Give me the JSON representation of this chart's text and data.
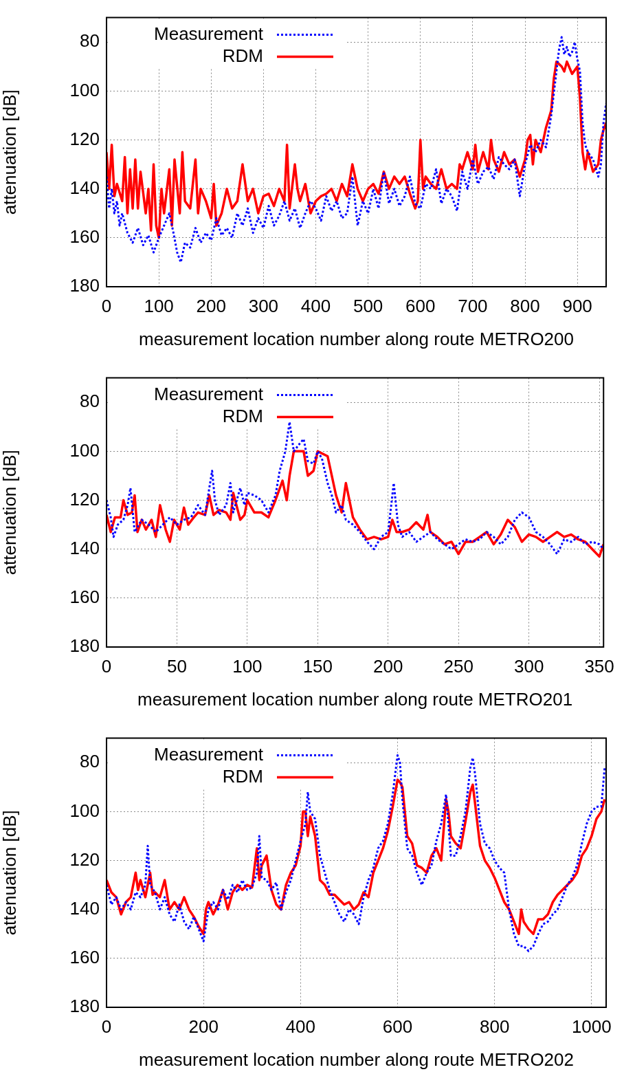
{
  "chart_data": [
    {
      "type": "line",
      "xlabel": "measurement location number along route METRO200",
      "ylabel": "attenuation [dB]",
      "xlim": [
        0,
        955
      ],
      "ylim": [
        180,
        70
      ],
      "xticks": [
        0,
        100,
        200,
        300,
        400,
        500,
        600,
        700,
        800,
        900
      ],
      "yticks": [
        80,
        100,
        120,
        140,
        160,
        180
      ],
      "grid": true,
      "legend": "top left",
      "series": [
        {
          "name": "Measurement",
          "color": "#0000ff",
          "line_style": "dotted",
          "x": [
            0,
            5,
            10,
            15,
            20,
            25,
            30,
            40,
            50,
            60,
            70,
            80,
            90,
            100,
            110,
            120,
            128,
            135,
            142,
            150,
            160,
            170,
            180,
            190,
            200,
            210,
            220,
            230,
            240,
            250,
            260,
            270,
            280,
            290,
            300,
            310,
            320,
            330,
            340,
            350,
            360,
            370,
            380,
            390,
            400,
            410,
            420,
            430,
            440,
            450,
            460,
            470,
            480,
            490,
            500,
            510,
            520,
            530,
            540,
            550,
            560,
            570,
            580,
            590,
            600,
            610,
            620,
            630,
            640,
            650,
            660,
            670,
            680,
            690,
            700,
            710,
            720,
            730,
            740,
            750,
            760,
            770,
            780,
            790,
            800,
            810,
            820,
            830,
            840,
            850,
            860,
            865,
            870,
            875,
            880,
            885,
            890,
            895,
            900,
            905,
            910,
            915,
            920,
            930,
            940,
            945,
            950,
            955
          ],
          "values": [
            135,
            148,
            140,
            150,
            145,
            155,
            150,
            158,
            162,
            156,
            163,
            159,
            166,
            160,
            155,
            150,
            158,
            166,
            170,
            162,
            164,
            156,
            162,
            158,
            161,
            152,
            159,
            156,
            160,
            150,
            155,
            148,
            158,
            152,
            156,
            147,
            155,
            151,
            145,
            153,
            148,
            156,
            150,
            145,
            148,
            153,
            143,
            149,
            145,
            152,
            150,
            135,
            155,
            145,
            150,
            140,
            148,
            133,
            146,
            140,
            147,
            143,
            135,
            146,
            148,
            138,
            140,
            132,
            146,
            140,
            143,
            149,
            133,
            140,
            128,
            138,
            133,
            131,
            136,
            127,
            130,
            132,
            128,
            143,
            130,
            122,
            125,
            120,
            123,
            110,
            92,
            83,
            78,
            85,
            82,
            86,
            84,
            80,
            87,
            92,
            113,
            122,
            125,
            128,
            135,
            130,
            113,
            105
          ]
        },
        {
          "name": "RDM",
          "color": "#ff0000",
          "line_style": "solid",
          "x": [
            0,
            5,
            10,
            15,
            20,
            30,
            35,
            40,
            45,
            50,
            55,
            60,
            65,
            75,
            80,
            85,
            90,
            95,
            100,
            105,
            110,
            120,
            125,
            130,
            140,
            145,
            150,
            160,
            170,
            175,
            180,
            190,
            200,
            205,
            210,
            220,
            230,
            240,
            250,
            260,
            270,
            280,
            290,
            300,
            310,
            320,
            330,
            340,
            345,
            350,
            360,
            365,
            370,
            380,
            390,
            400,
            410,
            420,
            430,
            440,
            450,
            460,
            470,
            480,
            490,
            500,
            510,
            520,
            530,
            540,
            550,
            560,
            570,
            580,
            590,
            595,
            600,
            605,
            610,
            620,
            630,
            640,
            650,
            660,
            670,
            675,
            680,
            690,
            700,
            705,
            710,
            720,
            730,
            735,
            740,
            750,
            760,
            770,
            780,
            790,
            800,
            805,
            810,
            815,
            820,
            830,
            840,
            850,
            855,
            860,
            870,
            875,
            880,
            890,
            900,
            905,
            910,
            915,
            920,
            930,
            940,
            945,
            950,
            955
          ],
          "values": [
            125,
            140,
            122,
            143,
            138,
            145,
            127,
            150,
            132,
            148,
            128,
            148,
            133,
            150,
            140,
            157,
            130,
            155,
            160,
            140,
            150,
            132,
            155,
            128,
            150,
            125,
            145,
            148,
            128,
            150,
            140,
            145,
            152,
            138,
            155,
            150,
            140,
            148,
            145,
            130,
            145,
            140,
            150,
            143,
            142,
            147,
            140,
            145,
            122,
            148,
            130,
            140,
            145,
            138,
            150,
            145,
            143,
            142,
            140,
            145,
            138,
            143,
            130,
            140,
            145,
            140,
            138,
            142,
            133,
            140,
            135,
            138,
            135,
            142,
            148,
            145,
            120,
            140,
            135,
            138,
            140,
            132,
            140,
            138,
            140,
            130,
            132,
            125,
            132,
            122,
            133,
            125,
            132,
            120,
            128,
            133,
            125,
            130,
            128,
            135,
            128,
            120,
            118,
            130,
            120,
            125,
            115,
            108,
            95,
            88,
            90,
            92,
            88,
            93,
            90,
            103,
            125,
            132,
            125,
            133,
            130,
            120,
            116,
            113
          ]
        }
      ]
    },
    {
      "type": "line",
      "xlabel": "measurement location number along route METRO201",
      "ylabel": "attenuation [dB]",
      "xlim": [
        0,
        353
      ],
      "ylim": [
        180,
        70
      ],
      "xticks": [
        0,
        50,
        100,
        150,
        200,
        250,
        300,
        350
      ],
      "yticks": [
        80,
        100,
        120,
        140,
        160,
        180
      ],
      "grid": true,
      "legend": "top left",
      "series": [
        {
          "name": "Measurement",
          "color": "#0000ff",
          "line_style": "dotted",
          "x": [
            0,
            3,
            5,
            8,
            12,
            15,
            17,
            20,
            25,
            30,
            35,
            40,
            45,
            50,
            55,
            60,
            65,
            70,
            73,
            75,
            77,
            80,
            85,
            88,
            90,
            95,
            98,
            100,
            105,
            110,
            115,
            120,
            123,
            127,
            130,
            133,
            137,
            140,
            143,
            147,
            150,
            153,
            157,
            160,
            163,
            167,
            170,
            175,
            180,
            185,
            190,
            195,
            200,
            202,
            204,
            207,
            210,
            215,
            220,
            225,
            230,
            235,
            240,
            245,
            250,
            255,
            260,
            265,
            270,
            275,
            280,
            285,
            290,
            295,
            300,
            305,
            310,
            315,
            320,
            325,
            330,
            335,
            340,
            345,
            350,
            353
          ],
          "values": [
            120,
            127,
            135,
            130,
            128,
            122,
            115,
            133,
            128,
            130,
            133,
            130,
            127,
            130,
            128,
            127,
            122,
            126,
            115,
            108,
            120,
            126,
            122,
            113,
            125,
            115,
            122,
            117,
            118,
            120,
            125,
            118,
            108,
            100,
            88,
            100,
            97,
            95,
            104,
            105,
            100,
            103,
            113,
            118,
            125,
            122,
            128,
            130,
            133,
            137,
            140,
            135,
            133,
            123,
            113,
            130,
            135,
            133,
            137,
            135,
            133,
            136,
            138,
            140,
            138,
            136,
            137,
            136,
            133,
            135,
            138,
            135,
            128,
            125,
            127,
            133,
            135,
            138,
            142,
            136,
            137,
            135,
            138,
            137,
            138,
            140
          ]
        },
        {
          "name": "RDM",
          "color": "#ff0000",
          "line_style": "solid",
          "x": [
            0,
            3,
            6,
            10,
            12,
            15,
            18,
            20,
            22,
            25,
            28,
            32,
            35,
            38,
            42,
            45,
            48,
            52,
            55,
            58,
            62,
            65,
            70,
            73,
            76,
            80,
            85,
            88,
            90,
            95,
            98,
            100,
            105,
            110,
            115,
            120,
            125,
            128,
            130,
            133,
            140,
            143,
            147,
            150,
            157,
            160,
            163,
            167,
            170,
            175,
            180,
            185,
            190,
            195,
            200,
            203,
            206,
            210,
            215,
            220,
            225,
            228,
            230,
            235,
            240,
            245,
            250,
            255,
            260,
            265,
            270,
            275,
            280,
            285,
            290,
            295,
            300,
            305,
            310,
            315,
            320,
            325,
            330,
            335,
            340,
            345,
            350,
            353
          ],
          "values": [
            126,
            133,
            127,
            127,
            120,
            126,
            125,
            118,
            133,
            128,
            132,
            128,
            135,
            122,
            132,
            137,
            128,
            132,
            123,
            130,
            127,
            125,
            126,
            118,
            126,
            124,
            125,
            128,
            117,
            128,
            126,
            120,
            125,
            125,
            127,
            120,
            112,
            120,
            110,
            100,
            100,
            110,
            108,
            100,
            102,
            110,
            118,
            125,
            113,
            127,
            132,
            136,
            135,
            136,
            135,
            128,
            133,
            133,
            132,
            129,
            132,
            126,
            133,
            135,
            138,
            137,
            142,
            137,
            137,
            135,
            133,
            138,
            134,
            128,
            131,
            137,
            134,
            135,
            137,
            135,
            133,
            135,
            134,
            136,
            137,
            140,
            143,
            138
          ]
        }
      ]
    },
    {
      "type": "line",
      "xlabel": "measurement location number along route METRO202",
      "ylabel": "attenuation [dB]",
      "xlim": [
        0,
        1030
      ],
      "ylim": [
        180,
        70
      ],
      "xticks": [
        0,
        200,
        400,
        600,
        800,
        1000
      ],
      "yticks": [
        80,
        100,
        120,
        140,
        160,
        180
      ],
      "grid": true,
      "legend": "top left",
      "series": [
        {
          "name": "Measurement",
          "color": "#0000ff",
          "line_style": "dotted",
          "x": [
            0,
            10,
            20,
            30,
            40,
            50,
            60,
            70,
            80,
            85,
            90,
            100,
            110,
            120,
            130,
            140,
            150,
            160,
            170,
            180,
            190,
            200,
            210,
            220,
            230,
            240,
            250,
            260,
            270,
            280,
            290,
            300,
            310,
            315,
            320,
            330,
            340,
            350,
            360,
            370,
            380,
            390,
            400,
            410,
            415,
            420,
            430,
            440,
            450,
            460,
            470,
            480,
            490,
            500,
            510,
            520,
            530,
            540,
            550,
            560,
            570,
            580,
            590,
            600,
            605,
            610,
            620,
            630,
            640,
            650,
            660,
            670,
            680,
            690,
            700,
            710,
            720,
            730,
            740,
            750,
            755,
            760,
            770,
            780,
            790,
            800,
            810,
            820,
            830,
            840,
            850,
            860,
            870,
            880,
            890,
            900,
            910,
            920,
            930,
            940,
            950,
            960,
            970,
            980,
            990,
            1000,
            1010,
            1020,
            1027
          ],
          "values": [
            130,
            138,
            135,
            140,
            137,
            140,
            133,
            135,
            130,
            114,
            130,
            133,
            140,
            135,
            142,
            145,
            138,
            145,
            148,
            143,
            148,
            153,
            140,
            137,
            140,
            132,
            136,
            130,
            133,
            128,
            132,
            131,
            125,
            110,
            127,
            128,
            132,
            129,
            140,
            133,
            128,
            120,
            112,
            105,
            92,
            100,
            103,
            118,
            125,
            132,
            137,
            142,
            145,
            140,
            142,
            146,
            135,
            128,
            123,
            115,
            112,
            105,
            93,
            77,
            80,
            95,
            115,
            118,
            125,
            130,
            125,
            122,
            112,
            105,
            93,
            118,
            118,
            110,
            100,
            82,
            78,
            85,
            105,
            113,
            115,
            120,
            123,
            125,
            140,
            150,
            155,
            155,
            157,
            155,
            150,
            146,
            145,
            142,
            140,
            135,
            130,
            127,
            122,
            113,
            105,
            100,
            98,
            98,
            82
          ]
        },
        {
          "name": "RDM",
          "color": "#ff0000",
          "line_style": "solid",
          "x": [
            0,
            10,
            20,
            30,
            40,
            50,
            60,
            65,
            70,
            80,
            90,
            95,
            100,
            110,
            120,
            130,
            140,
            150,
            160,
            170,
            180,
            190,
            200,
            205,
            210,
            220,
            230,
            240,
            250,
            260,
            270,
            280,
            290,
            300,
            310,
            315,
            320,
            330,
            340,
            350,
            360,
            370,
            380,
            390,
            400,
            405,
            410,
            415,
            420,
            430,
            440,
            450,
            460,
            470,
            480,
            490,
            500,
            510,
            520,
            530,
            540,
            550,
            560,
            570,
            580,
            590,
            600,
            605,
            610,
            620,
            630,
            640,
            650,
            660,
            670,
            680,
            690,
            700,
            705,
            710,
            720,
            730,
            740,
            750,
            755,
            760,
            770,
            780,
            790,
            800,
            810,
            820,
            830,
            840,
            850,
            855,
            860,
            870,
            880,
            890,
            900,
            910,
            920,
            930,
            940,
            950,
            960,
            970,
            980,
            990,
            1000,
            1010,
            1020,
            1027
          ],
          "values": [
            128,
            133,
            135,
            142,
            137,
            135,
            125,
            132,
            128,
            135,
            125,
            134,
            133,
            135,
            128,
            140,
            137,
            140,
            135,
            140,
            143,
            147,
            150,
            140,
            137,
            142,
            138,
            132,
            140,
            133,
            130,
            132,
            130,
            131,
            115,
            128,
            122,
            118,
            132,
            138,
            140,
            130,
            125,
            122,
            114,
            100,
            100,
            110,
            102,
            110,
            128,
            130,
            134,
            134,
            136,
            138,
            137,
            140,
            138,
            133,
            135,
            125,
            120,
            115,
            108,
            98,
            87,
            88,
            90,
            110,
            113,
            122,
            123,
            125,
            118,
            115,
            120,
            95,
            100,
            110,
            113,
            115,
            104,
            92,
            89,
            97,
            114,
            120,
            123,
            127,
            132,
            137,
            140,
            145,
            150,
            140,
            145,
            148,
            150,
            144,
            144,
            142,
            137,
            134,
            132,
            130,
            128,
            125,
            118,
            115,
            110,
            103,
            100,
            95
          ]
        }
      ]
    }
  ]
}
